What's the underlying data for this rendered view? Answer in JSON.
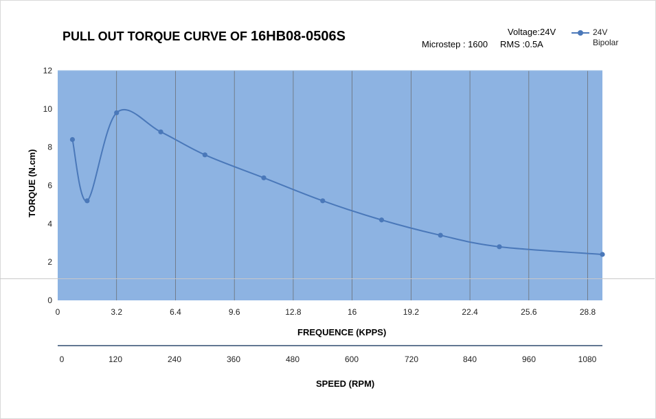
{
  "title": {
    "part_a": "PULL OUT TORQUE CURVE OF ",
    "part_b": "16HB08-0506S"
  },
  "info": {
    "voltage": "Voltage:24V",
    "microstep": "Microstep : 1600",
    "rms": "RMS :0.5A"
  },
  "legend": {
    "name": "24V",
    "sub": "Bipolar",
    "color": "#4a78b9"
  },
  "colors": {
    "plot_bg": "#8db3e2",
    "line": "#4a78b9",
    "grid": "#666666",
    "rule": "#2f4a6e"
  },
  "chart_data": {
    "type": "line",
    "title": "PULL OUT TORQUE CURVE OF 16HB08-0506S",
    "xlabel": "FREQUENCE (KPPS)",
    "ylabel": "TORQUE (N.cm)",
    "x2label": "SPEED (RPM)",
    "xlim": [
      0,
      29.6
    ],
    "ylim": [
      0,
      12
    ],
    "x_ticks": [
      "0",
      "3.2",
      "6.4",
      "9.6",
      "12.8",
      "16",
      "19.2",
      "22.4",
      "25.6",
      "28.8"
    ],
    "x_tick_values": [
      0,
      3.2,
      6.4,
      9.6,
      12.8,
      16,
      19.2,
      22.4,
      25.6,
      28.8
    ],
    "y_ticks": [
      "0",
      "2",
      "4",
      "6",
      "8",
      "10",
      "12"
    ],
    "y_tick_values": [
      0,
      2,
      4,
      6,
      8,
      10,
      12
    ],
    "speed_ticks": [
      "0",
      "120",
      "240",
      "360",
      "480",
      "600",
      "720",
      "840",
      "960",
      "1080"
    ],
    "speed_tick_values": [
      0,
      120,
      240,
      360,
      480,
      600,
      720,
      840,
      960,
      1080
    ],
    "grid": true,
    "legend_position": "top-right",
    "series": [
      {
        "name": "24V Bipolar",
        "x": [
          0.8,
          1.6,
          3.2,
          5.6,
          8.0,
          11.2,
          14.4,
          17.6,
          20.8,
          24.0,
          29.6
        ],
        "y": [
          8.4,
          5.2,
          9.8,
          8.8,
          7.6,
          6.4,
          5.2,
          4.2,
          3.4,
          2.8,
          2.4
        ]
      }
    ]
  }
}
